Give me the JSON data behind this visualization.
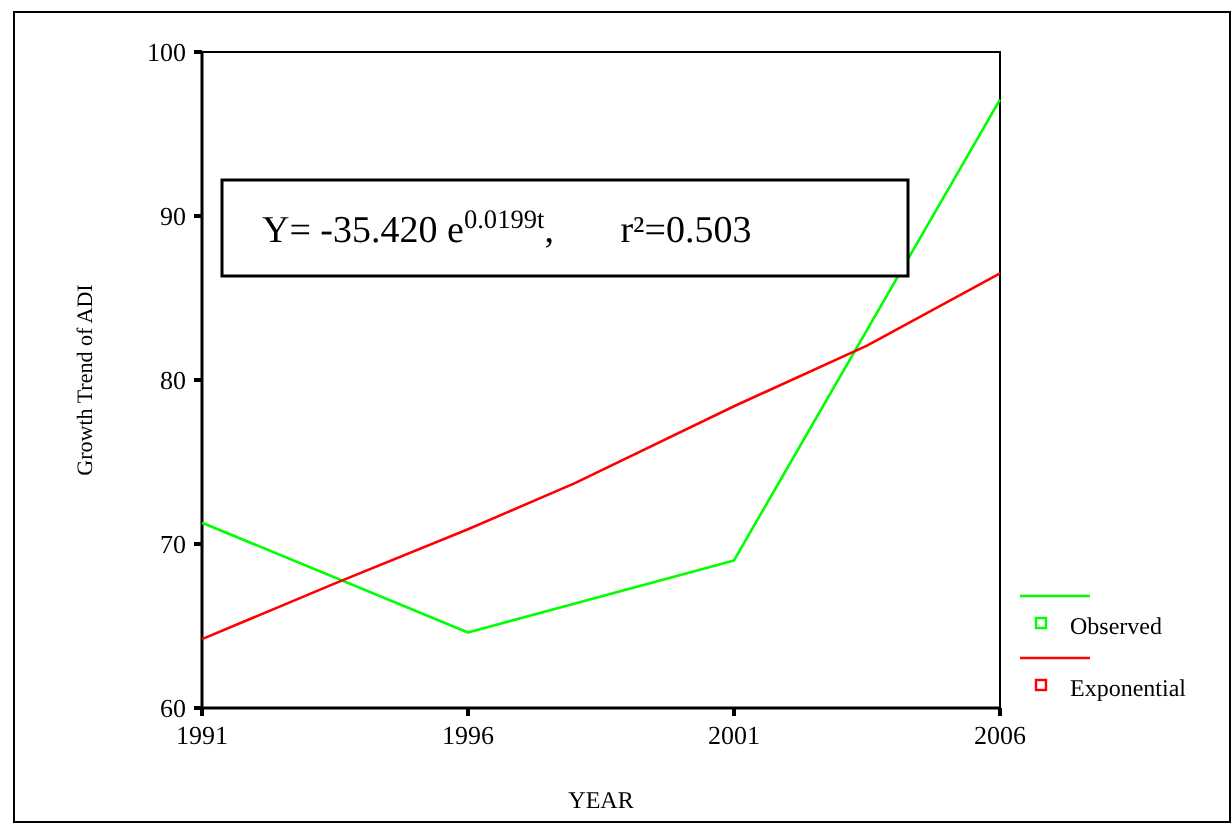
{
  "chart_data": {
    "type": "line",
    "xlabel": "YEAR",
    "ylabel": "Growth Trend of ADI",
    "xlim": [
      1991,
      2006
    ],
    "xticks": [
      1991,
      1996,
      2001,
      2006
    ],
    "ylim": [
      60,
      100
    ],
    "yticks": [
      60,
      70,
      80,
      90,
      100
    ],
    "grid": false,
    "legend": "bottom right",
    "line_style": "solid",
    "annotations": [
      "Y= -35.420 e$^{0.0199t}$,       r²=0.503"
    ],
    "series": [
      {
        "name": "Observed",
        "color": "#00ff00",
        "x": [
          1991,
          1996,
          2001,
          2006
        ],
        "values": [
          71.3,
          64.6,
          69.0,
          97.1
        ]
      },
      {
        "name": "Exponential",
        "color": "#ff0000",
        "x": [
          1991,
          1993.5,
          1996,
          1998,
          2001,
          2003.5,
          2006
        ],
        "values": [
          64.2,
          67.6,
          70.9,
          73.7,
          78.4,
          82.1,
          86.5
        ]
      }
    ]
  }
}
